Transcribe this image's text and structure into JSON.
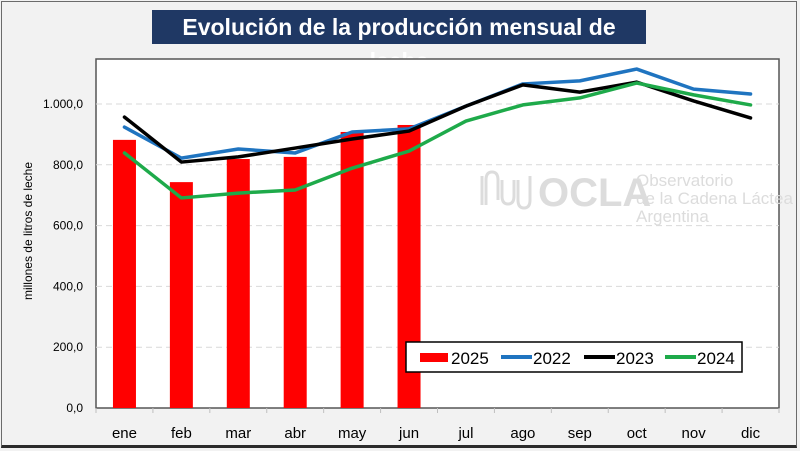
{
  "chart_data": {
    "type": "bar",
    "title": "Evolución de la producción mensual de leche",
    "xlabel": "",
    "ylabel": "millones de litros de leche",
    "ylim": [
      0,
      1100
    ],
    "yticks": [
      0,
      200,
      400,
      600,
      800,
      1000
    ],
    "ytick_labels": [
      "0,0",
      "200,0",
      "400,0",
      "600,0",
      "800,0",
      "1.000,0"
    ],
    "grid": true,
    "categories": [
      "ene",
      "feb",
      "mar",
      "abr",
      "may",
      "jun",
      "jul",
      "ago",
      "sep",
      "oct",
      "nov",
      "dic"
    ],
    "series": [
      {
        "name": "2025",
        "type": "bar",
        "color": "#ff0000",
        "values": [
          882,
          743,
          819,
          826,
          908,
          931,
          null,
          null,
          null,
          null,
          null,
          null
        ]
      },
      {
        "name": "2022",
        "type": "line",
        "color": "#1f74c0",
        "values": [
          924,
          822,
          852,
          839,
          908,
          918,
          993,
          1066,
          1076,
          1115,
          1049,
          1033
        ]
      },
      {
        "name": "2023",
        "type": "line",
        "color": "#000000",
        "values": [
          957,
          809,
          826,
          855,
          885,
          911,
          993,
          1063,
          1039,
          1072,
          1010,
          954
        ]
      },
      {
        "name": "2024",
        "type": "line",
        "color": "#1eaa4a",
        "values": [
          839,
          691,
          707,
          717,
          789,
          845,
          944,
          997,
          1020,
          1069,
          1030,
          997
        ]
      }
    ],
    "legend": {
      "position": "bottom-right",
      "entries": [
        "2025",
        "2022",
        "2023",
        "2024"
      ]
    }
  },
  "watermark": {
    "brand": "OCLA",
    "line1": "Observatorio",
    "line2": "de la Cadena Láctea",
    "line3": "Argentina"
  }
}
